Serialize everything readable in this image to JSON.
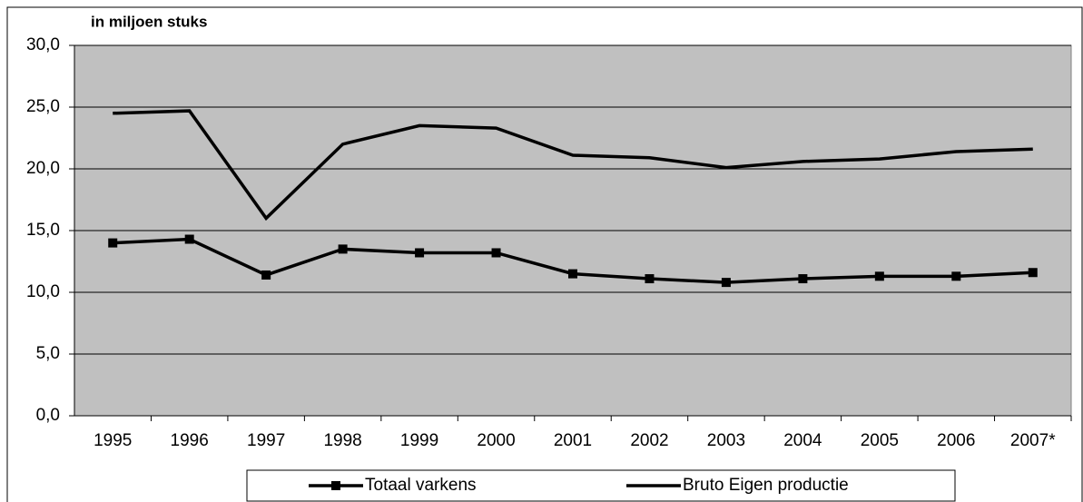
{
  "chart_data": {
    "type": "line",
    "y_axis_label": "in miljoen stuks",
    "categories": [
      "1995",
      "1996",
      "1997",
      "1998",
      "1999",
      "2000",
      "2001",
      "2002",
      "2003",
      "2004",
      "2005",
      "2006",
      "2007*"
    ],
    "series": [
      {
        "name": "Totaal varkens",
        "color": "#000000",
        "marker": "square",
        "values": [
          14.0,
          14.3,
          11.4,
          13.5,
          13.2,
          13.2,
          11.5,
          11.1,
          10.8,
          11.1,
          11.3,
          11.3,
          11.6
        ]
      },
      {
        "name": "Bruto Eigen productie",
        "color": "#000000",
        "marker": "none",
        "values": [
          24.5,
          24.7,
          16.0,
          22.0,
          23.5,
          23.3,
          21.1,
          20.9,
          20.1,
          20.6,
          20.8,
          21.4,
          21.6
        ]
      }
    ],
    "ylim": [
      0,
      30
    ],
    "yticks": [
      {
        "value": 0,
        "label": "0,0"
      },
      {
        "value": 5,
        "label": "5,0"
      },
      {
        "value": 10,
        "label": "10,0"
      },
      {
        "value": 15,
        "label": "15,0"
      },
      {
        "value": 20,
        "label": "20,0"
      },
      {
        "value": 25,
        "label": "25,0"
      },
      {
        "value": 30,
        "label": "30,0"
      }
    ],
    "grid": true,
    "plot_background": "#c0c0c0",
    "legend": "bottom"
  }
}
